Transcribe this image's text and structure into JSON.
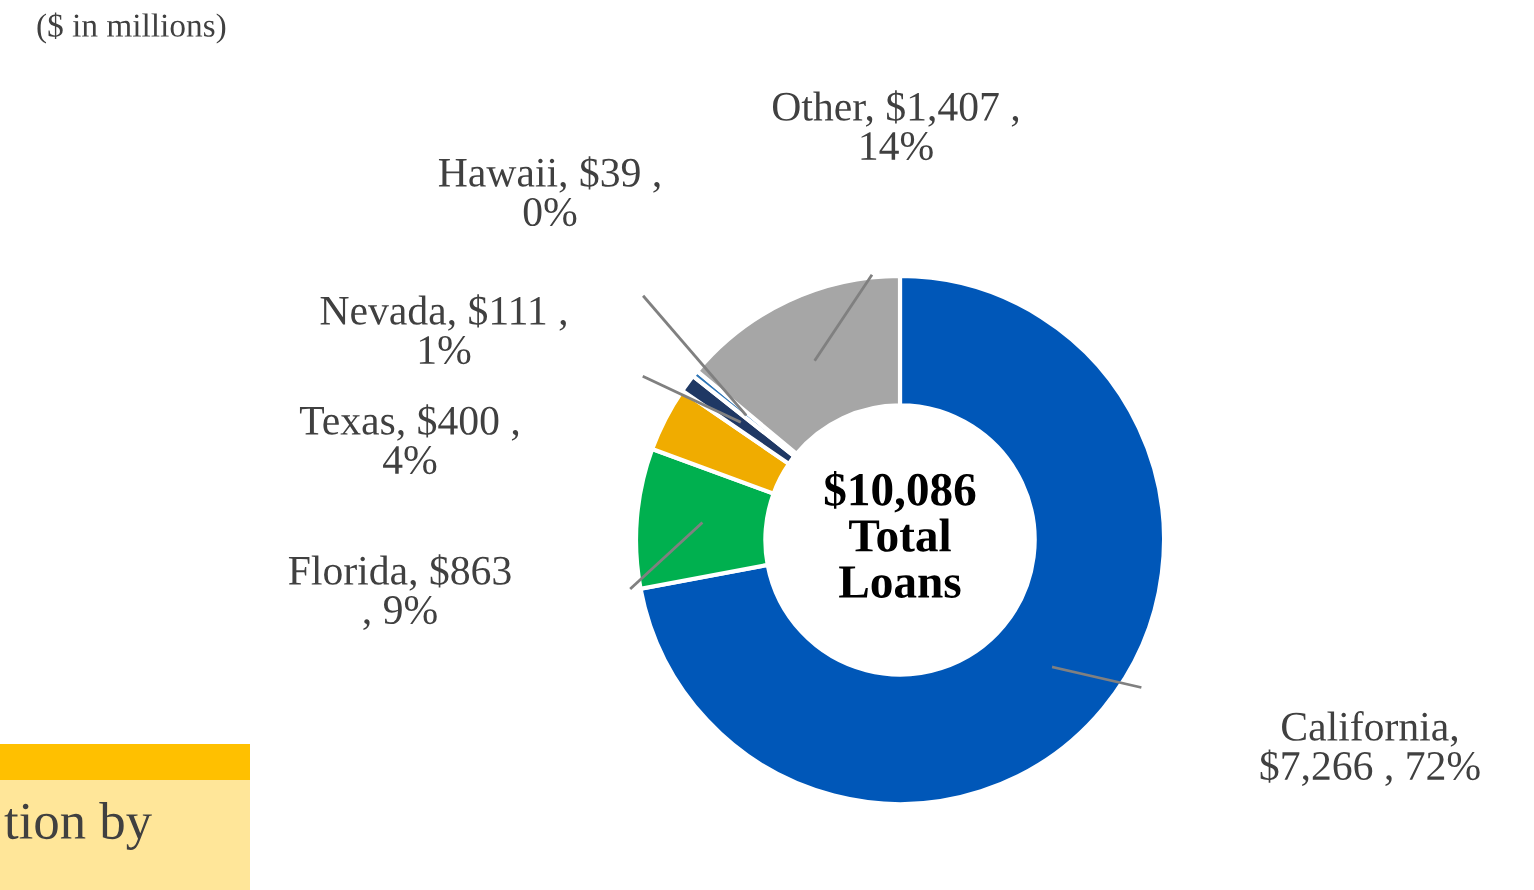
{
  "chart_data": {
    "type": "donut",
    "subtitle": "($ in millions)",
    "categories": [
      "California",
      "Florida",
      "Texas",
      "Nevada",
      "Hawaii",
      "Other"
    ],
    "values": [
      7266,
      863,
      400,
      111,
      39,
      1407
    ],
    "colors": [
      "#0057b8",
      "#00b04f",
      "#f0ac00",
      "#1f3864",
      "#2e75b6",
      "#a6a6a6"
    ],
    "value_labels": [
      ",\n$7,266 , 72%",
      "$863\n, 9%",
      "$400 ,\n4%",
      "$111 ,\n1%",
      "$39 ,\n0%",
      "$1,407 ,\n14%"
    ],
    "annotations": [
      "$10,086\nTotal\nLoans",
      "tion by"
    ],
    "legend": false
  }
}
